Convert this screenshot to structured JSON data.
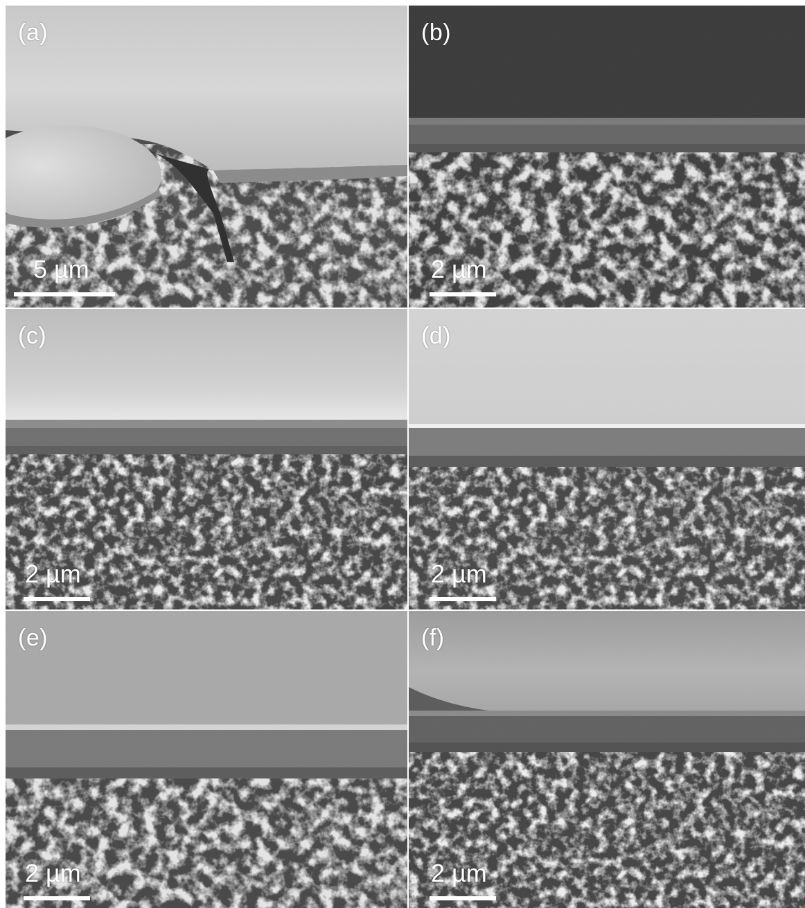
{
  "panels": [
    {
      "id": "a",
      "label": "(a)",
      "scale_text": "5 µm"
    },
    {
      "id": "b",
      "label": "(b)",
      "scale_text": "2 µm"
    },
    {
      "id": "c",
      "label": "(c)",
      "scale_text": "2 µm"
    },
    {
      "id": "d",
      "label": "(d)",
      "scale_text": "2 µm"
    },
    {
      "id": "e",
      "label": "(e)",
      "scale_text": "2 µm"
    },
    {
      "id": "f",
      "label": "(f)",
      "scale_text": "2 µm"
    }
  ]
}
